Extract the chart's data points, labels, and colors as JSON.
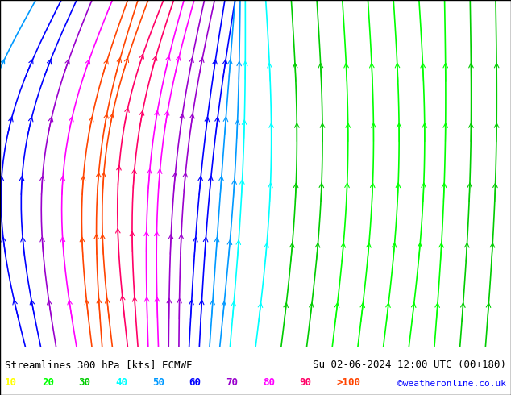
{
  "title_left": "Streamlines 300 hPa [kts] ECMWF",
  "title_right": "Su 02-06-2024 12:00 UTC (00+180)",
  "credit": "©weatheronline.co.uk",
  "legend_values": [
    "10",
    "20",
    "30",
    "40",
    "50",
    "60",
    "70",
    "80",
    "90",
    ">100"
  ],
  "legend_colors": [
    "#ffff00",
    "#00ff00",
    "#00cc00",
    "#00ffff",
    "#0099ff",
    "#0000ff",
    "#9900cc",
    "#ff00ff",
    "#ff0066",
    "#ff4400"
  ],
  "bg_color": "#ccff99",
  "border_color": "#000000",
  "bottom_bar_color": "#ffffff",
  "title_color": "#000000",
  "credit_color": "#0000ff",
  "figsize": [
    6.34,
    4.9
  ],
  "dpi": 100
}
